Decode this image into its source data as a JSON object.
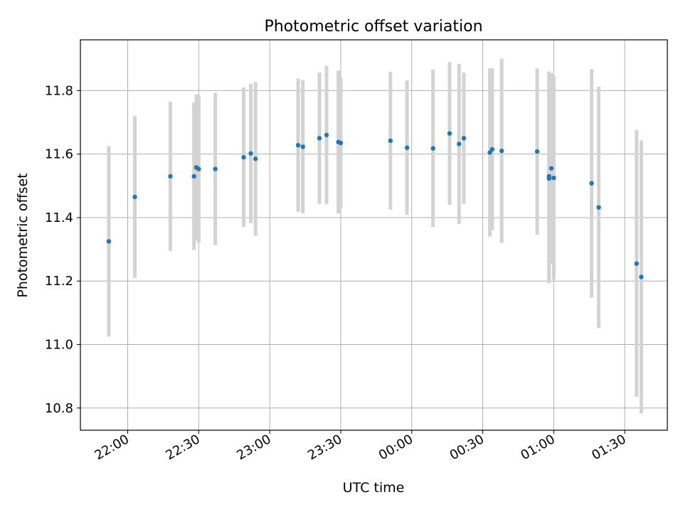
{
  "chart_data": {
    "type": "scatter",
    "title": "Photometric offset variation",
    "xlabel": "UTC time",
    "ylabel": "Photometric offset",
    "x_tick_labels": [
      "22:00",
      "22:30",
      "23:00",
      "23:30",
      "00:00",
      "00:30",
      "01:00",
      "01:30"
    ],
    "y_ticks": [
      10.8,
      11.0,
      11.2,
      11.4,
      11.6,
      11.8
    ],
    "ylim": [
      10.73,
      11.96
    ],
    "xlim": [
      "21:40",
      "01:48"
    ],
    "grid": true,
    "colors": {
      "point": "#1f77b4",
      "errorbar": "#d3d3d3",
      "grid": "#b0b0b0"
    },
    "points": [
      {
        "x": "21:52",
        "y": 11.325,
        "yerr": 0.3
      },
      {
        "x": "22:03",
        "y": 11.465,
        "yerr": 0.255
      },
      {
        "x": "22:18",
        "y": 11.53,
        "yerr": 0.235
      },
      {
        "x": "22:28",
        "y": 11.53,
        "yerr": 0.232
      },
      {
        "x": "22:29",
        "y": 11.558,
        "yerr": 0.23
      },
      {
        "x": "22:30",
        "y": 11.553,
        "yerr": 0.232
      },
      {
        "x": "22:37",
        "y": 11.553,
        "yerr": 0.24
      },
      {
        "x": "22:49",
        "y": 11.59,
        "yerr": 0.22
      },
      {
        "x": "22:52",
        "y": 11.602,
        "yerr": 0.22
      },
      {
        "x": "22:54",
        "y": 11.585,
        "yerr": 0.242
      },
      {
        "x": "23:12",
        "y": 11.628,
        "yerr": 0.21
      },
      {
        "x": "23:14",
        "y": 11.623,
        "yerr": 0.21
      },
      {
        "x": "23:21",
        "y": 11.65,
        "yerr": 0.207
      },
      {
        "x": "23:24",
        "y": 11.66,
        "yerr": 0.218
      },
      {
        "x": "23:29",
        "y": 11.638,
        "yerr": 0.225
      },
      {
        "x": "23:30",
        "y": 11.635,
        "yerr": 0.205
      },
      {
        "x": "23:51",
        "y": 11.642,
        "yerr": 0.217
      },
      {
        "x": "23:58",
        "y": 11.62,
        "yerr": 0.212
      },
      {
        "x": "00:09",
        "y": 11.618,
        "yerr": 0.248
      },
      {
        "x": "00:16",
        "y": 11.665,
        "yerr": 0.225
      },
      {
        "x": "00:20",
        "y": 11.632,
        "yerr": 0.252
      },
      {
        "x": "00:22",
        "y": 11.65,
        "yerr": 0.207
      },
      {
        "x": "00:33",
        "y": 11.605,
        "yerr": 0.265
      },
      {
        "x": "00:34",
        "y": 11.615,
        "yerr": 0.255
      },
      {
        "x": "00:38",
        "y": 11.61,
        "yerr": 0.29
      },
      {
        "x": "00:53",
        "y": 11.608,
        "yerr": 0.262
      },
      {
        "x": "00:58",
        "y": 11.53,
        "yerr": 0.33
      },
      {
        "x": "00:58",
        "y": 11.523,
        "yerr": 0.33
      },
      {
        "x": "00:59",
        "y": 11.555,
        "yerr": 0.3
      },
      {
        "x": "01:00",
        "y": 11.525,
        "yerr": 0.32
      },
      {
        "x": "01:16",
        "y": 11.508,
        "yerr": 0.36
      },
      {
        "x": "01:19",
        "y": 11.432,
        "yerr": 0.38
      },
      {
        "x": "01:35",
        "y": 11.255,
        "yerr": 0.42
      },
      {
        "x": "01:37",
        "y": 11.213,
        "yerr": 0.43
      }
    ]
  }
}
